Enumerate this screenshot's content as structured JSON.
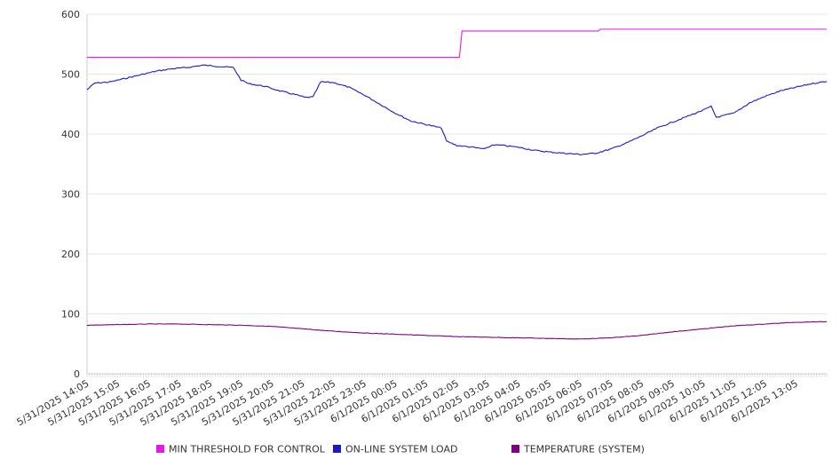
{
  "chart_data": {
    "type": "line",
    "title": "",
    "xlabel": "",
    "ylabel": "",
    "ylim": [
      0,
      600
    ],
    "yticks": [
      0,
      100,
      200,
      300,
      400,
      500,
      600
    ],
    "grid": "horizontal",
    "legend_position": "bottom",
    "x_start": "5/31/2025 14:05",
    "x_end": "6/1/2025 14:05",
    "x_tick_labels": [
      "5/31/2025 14:05",
      "5/31/2025 15:05",
      "5/31/2025 16:05",
      "5/31/2025 17:05",
      "5/31/2025 18:05",
      "5/31/2025 19:05",
      "5/31/2025 20:05",
      "5/31/2025 21:05",
      "5/31/2025 22:05",
      "5/31/2025 23:05",
      "6/1/2025 00:05",
      "6/1/2025 01:05",
      "6/1/2025 02:05",
      "6/1/2025 03:05",
      "6/1/2025 04:05",
      "6/1/2025 05:05",
      "6/1/2025 06:05",
      "6/1/2025 07:05",
      "6/1/2025 08:05",
      "6/1/2025 09:05",
      "6/1/2025 10:05",
      "6/1/2025 11:05",
      "6/1/2025 12:05",
      "6/1/2025 13:05"
    ],
    "series": [
      {
        "name": "MIN THRESHOLD FOR CONTROL",
        "color": "#e619e6",
        "step": true,
        "points": [
          [
            "5/31/2025 14:05",
            528
          ],
          [
            "6/1/2025 02:10",
            528
          ],
          [
            "6/1/2025 02:15",
            572
          ],
          [
            "6/1/2025 06:40",
            572
          ],
          [
            "6/1/2025 06:45",
            575
          ],
          [
            "6/1/2025 14:05",
            575
          ]
        ]
      },
      {
        "name": "ON-LINE SYSTEM LOAD",
        "color": "#1a1acc",
        "step": false,
        "points": [
          [
            "5/31/2025 14:05",
            474
          ],
          [
            "5/31/2025 14:20",
            485
          ],
          [
            "5/31/2025 14:50",
            487
          ],
          [
            "5/31/2025 15:20",
            493
          ],
          [
            "5/31/2025 15:50",
            499
          ],
          [
            "5/31/2025 16:20",
            505
          ],
          [
            "5/31/2025 16:50",
            509
          ],
          [
            "5/31/2025 17:20",
            511
          ],
          [
            "5/31/2025 17:50",
            515
          ],
          [
            "5/31/2025 18:20",
            513
          ],
          [
            "5/31/2025 18:50",
            511
          ],
          [
            "5/31/2025 19:05",
            490
          ],
          [
            "5/31/2025 19:20",
            484
          ],
          [
            "5/31/2025 19:50",
            480
          ],
          [
            "5/31/2025 20:20",
            472
          ],
          [
            "5/31/2025 20:50",
            466
          ],
          [
            "5/31/2025 21:10",
            461
          ],
          [
            "5/31/2025 21:25",
            462
          ],
          [
            "5/31/2025 21:40",
            487
          ],
          [
            "5/31/2025 22:05",
            486
          ],
          [
            "5/31/2025 22:35",
            478
          ],
          [
            "5/31/2025 23:05",
            465
          ],
          [
            "5/31/2025 23:35",
            450
          ],
          [
            "6/1/2025 00:05",
            435
          ],
          [
            "6/1/2025 00:35",
            422
          ],
          [
            "6/1/2025 01:05",
            416
          ],
          [
            "6/1/2025 01:35",
            410
          ],
          [
            "6/1/2025 01:45",
            388
          ],
          [
            "6/1/2025 02:05",
            381
          ],
          [
            "6/1/2025 02:35",
            378
          ],
          [
            "6/1/2025 03:00",
            375
          ],
          [
            "6/1/2025 03:15",
            382
          ],
          [
            "6/1/2025 03:35",
            381
          ],
          [
            "6/1/2025 04:05",
            378
          ],
          [
            "6/1/2025 04:35",
            373
          ],
          [
            "6/1/2025 05:05",
            370
          ],
          [
            "6/1/2025 05:35",
            368
          ],
          [
            "6/1/2025 06:05",
            366
          ],
          [
            "6/1/2025 06:35",
            368
          ],
          [
            "6/1/2025 07:05",
            375
          ],
          [
            "6/1/2025 07:35",
            385
          ],
          [
            "6/1/2025 08:05",
            397
          ],
          [
            "6/1/2025 08:35",
            410
          ],
          [
            "6/1/2025 09:05",
            420
          ],
          [
            "6/1/2025 09:35",
            430
          ],
          [
            "6/1/2025 10:05",
            440
          ],
          [
            "6/1/2025 10:20",
            446
          ],
          [
            "6/1/2025 10:30",
            428
          ],
          [
            "6/1/2025 11:05",
            435
          ],
          [
            "6/1/2025 11:35",
            452
          ],
          [
            "6/1/2025 12:05",
            463
          ],
          [
            "6/1/2025 12:35",
            472
          ],
          [
            "6/1/2025 13:05",
            478
          ],
          [
            "6/1/2025 13:35",
            484
          ],
          [
            "6/1/2025 14:05",
            488
          ]
        ]
      },
      {
        "name": "TEMPERATURE (SYSTEM)",
        "color": "#800080",
        "step": false,
        "points": [
          [
            "5/31/2025 14:05",
            81
          ],
          [
            "5/31/2025 15:05",
            82
          ],
          [
            "5/31/2025 16:05",
            83
          ],
          [
            "5/31/2025 17:05",
            83
          ],
          [
            "5/31/2025 18:05",
            82
          ],
          [
            "5/31/2025 19:05",
            81
          ],
          [
            "5/31/2025 20:05",
            79
          ],
          [
            "5/31/2025 21:05",
            75
          ],
          [
            "5/31/2025 22:05",
            71
          ],
          [
            "5/31/2025 23:05",
            68
          ],
          [
            "6/1/2025 00:05",
            66
          ],
          [
            "6/1/2025 01:05",
            64
          ],
          [
            "6/1/2025 02:05",
            62
          ],
          [
            "6/1/2025 03:05",
            61
          ],
          [
            "6/1/2025 04:05",
            60
          ],
          [
            "6/1/2025 05:05",
            59
          ],
          [
            "6/1/2025 06:05",
            58
          ],
          [
            "6/1/2025 07:05",
            60
          ],
          [
            "6/1/2025 08:05",
            64
          ],
          [
            "6/1/2025 09:05",
            70
          ],
          [
            "6/1/2025 10:05",
            75
          ],
          [
            "6/1/2025 11:05",
            80
          ],
          [
            "6/1/2025 12:05",
            83
          ],
          [
            "6/1/2025 13:05",
            86
          ],
          [
            "6/1/2025 14:05",
            87
          ]
        ]
      }
    ]
  }
}
